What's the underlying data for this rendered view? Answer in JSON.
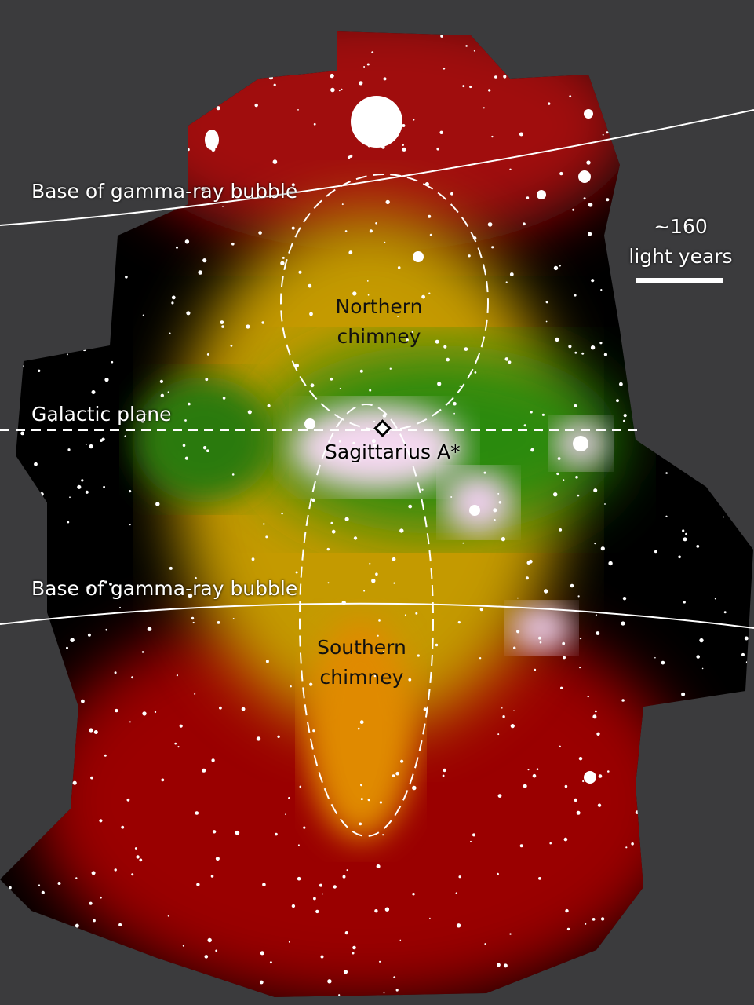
{
  "labels": {
    "gamma_north": "Base of gamma-ray bubble",
    "gamma_south": "Base of gamma-ray bubble",
    "galactic_plane": "Galactic plane",
    "sgr_a": "Sagittarius A*",
    "northern_chimney_1": "Northern",
    "northern_chimney_2": "chimney",
    "southern_chimney_1": "Southern",
    "southern_chimney_2": "chimney"
  },
  "scale_bar": {
    "line1": "~160",
    "line2": "light years"
  },
  "colors": {
    "background": "#3b3b3d",
    "red": "#a00000",
    "yellow": "#d9a400",
    "green": "#2e8a10",
    "white": "#ffffff"
  }
}
